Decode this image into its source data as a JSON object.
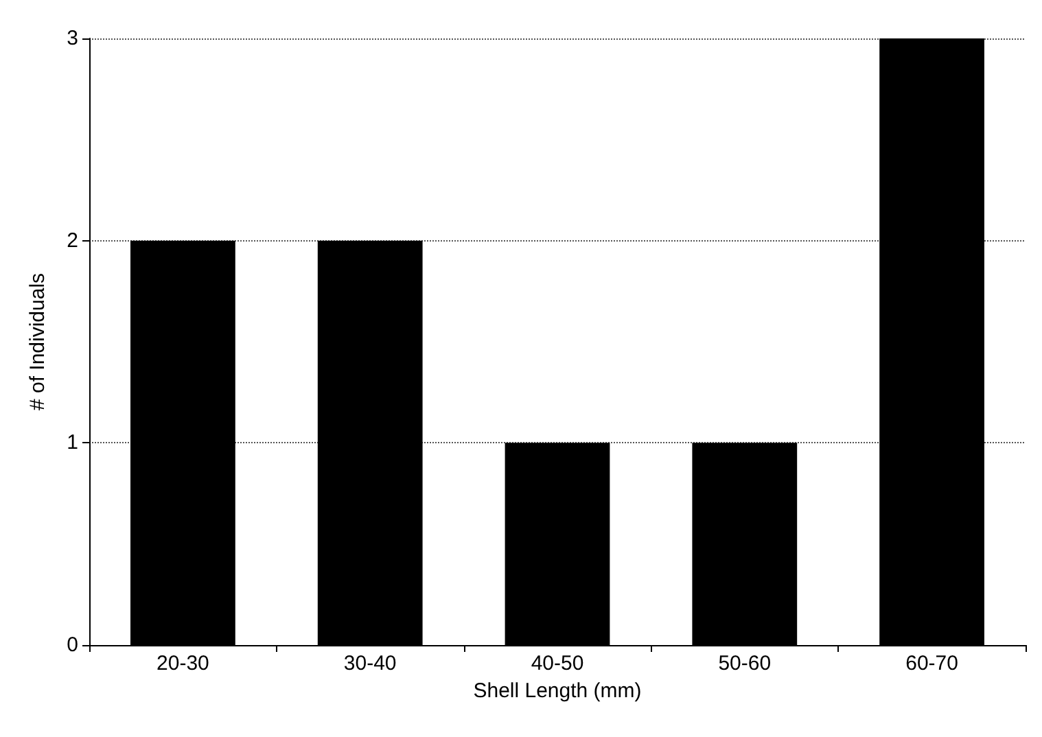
{
  "chart_data": {
    "type": "bar",
    "xlabel": "Shell Length (mm)",
    "ylabel": "# of Individuals",
    "categories": [
      "20-30",
      "30-40",
      "40-50",
      "50-60",
      "60-70"
    ],
    "values": [
      2,
      2,
      1,
      1,
      3
    ],
    "color": "#000000",
    "ylim": [
      0,
      3
    ],
    "yticks": [
      0,
      1,
      2,
      3
    ],
    "grid": "y"
  }
}
